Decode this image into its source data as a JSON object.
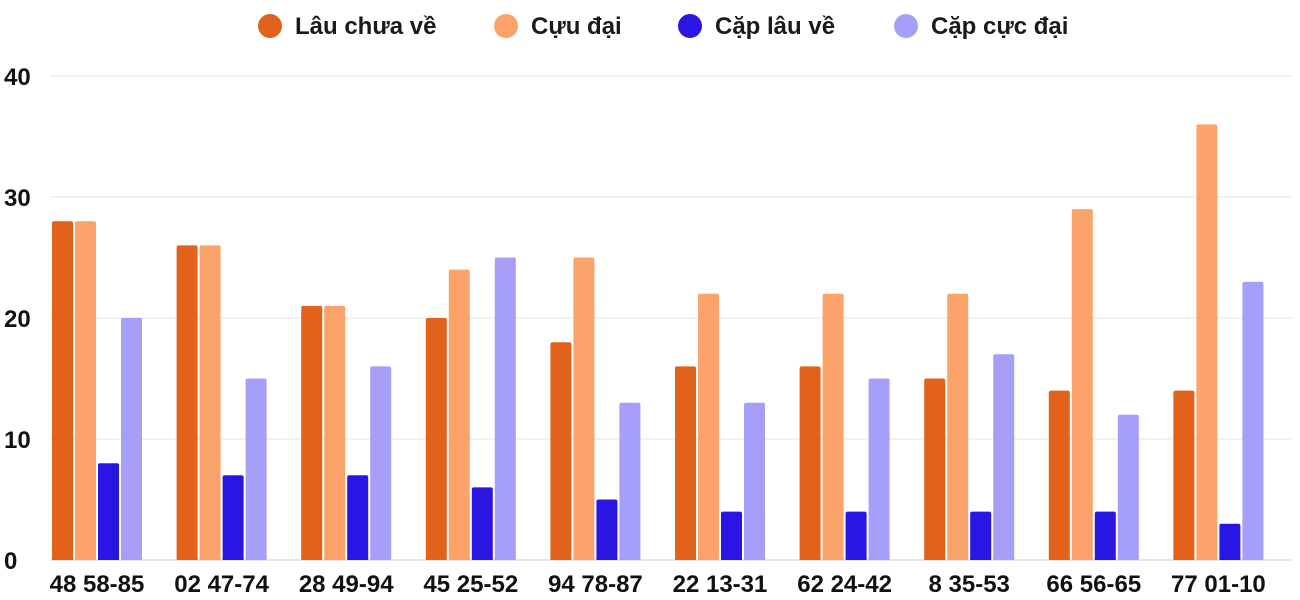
{
  "chart_data": {
    "type": "bar",
    "title": "",
    "xlabel": "",
    "ylabel": "",
    "ylim": [
      0,
      40
    ],
    "yticks": [
      0,
      10,
      20,
      30,
      40
    ],
    "ytick_labels": [
      "0",
      "10",
      "20",
      "30",
      "40"
    ],
    "grid": true,
    "legend_position": "top-center",
    "categories": [
      "48 58-85",
      "02 47-74",
      "28 49-94",
      "45 25-52",
      "94 78-87",
      "22 13-31",
      "62 24-42",
      "8 35-53",
      "66 56-65",
      "77 01-10"
    ],
    "series": [
      {
        "name": "Lâu chưa về",
        "color": "#e2621b",
        "values": [
          28,
          26,
          21,
          20,
          18,
          16,
          16,
          15,
          14,
          14
        ]
      },
      {
        "name": "Cựu đại",
        "color": "#fba36b",
        "values": [
          28,
          26,
          21,
          24,
          25,
          22,
          22,
          22,
          29,
          36
        ]
      },
      {
        "name": "Cặp lâu về",
        "color": "#2a16e2",
        "values": [
          8,
          7,
          7,
          6,
          5,
          4,
          4,
          4,
          4,
          3
        ]
      },
      {
        "name": "Cặp cực đại",
        "color": "#a59ffa",
        "values": [
          20,
          15,
          16,
          25,
          13,
          13,
          15,
          17,
          12,
          23
        ]
      }
    ]
  }
}
